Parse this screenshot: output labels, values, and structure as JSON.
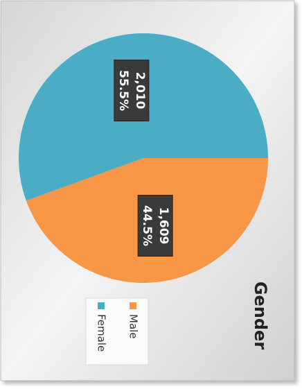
{
  "chart_data": {
    "type": "pie",
    "title": "Gender",
    "categories": [
      "Male",
      "Female"
    ],
    "values": [
      1609,
      2010
    ],
    "value_labels": [
      "1,609",
      "2,010"
    ],
    "percent_labels": [
      "44.5%",
      "55.5%"
    ],
    "colors": [
      "#f79646",
      "#4bacc6"
    ],
    "legend": "bottom"
  }
}
